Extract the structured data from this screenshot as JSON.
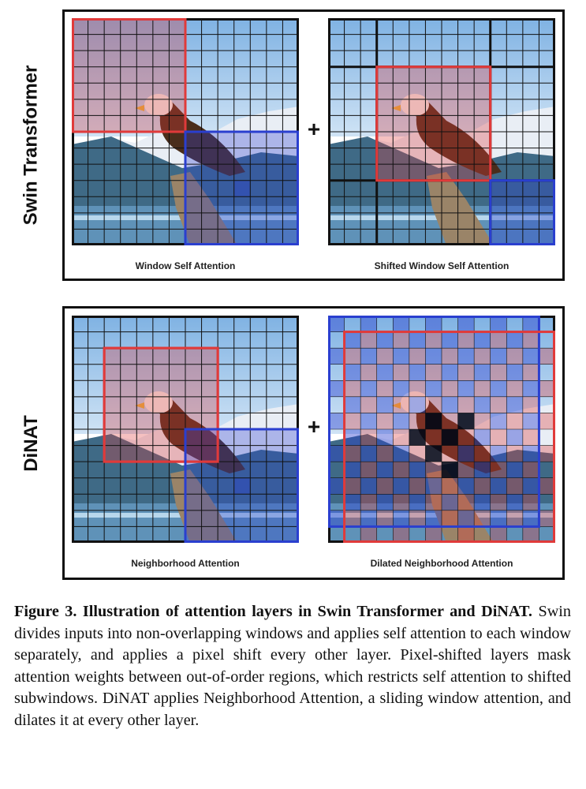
{
  "rows": {
    "swin": {
      "label": "Swin Transformer",
      "left_title": "Window Self Attention",
      "right_title": "Shifted Window Self Attention"
    },
    "dinat": {
      "label": "DiNAT",
      "left_title": "Neighborhood Attention",
      "right_title": "Dilated Neighborhood Attention"
    }
  },
  "operator": "+",
  "caption": {
    "bold": "Figure 3. Illustration of attention layers in Swin Transformer and DiNAT.",
    "text": " Swin divides inputs into non-overlapping windows and applies self attention to each window separately, and applies a pixel shift every other layer. Pixel-shifted layers mask attention weights between out-of-order regions, which restricts self attention to shifted subwindows. DiNAT applies Neighborhood Attention, a sliding window attention, and dilates it at every other layer."
  },
  "colors": {
    "red": "#e03a3a",
    "blue": "#2a3fcf",
    "grid": "#111111"
  }
}
